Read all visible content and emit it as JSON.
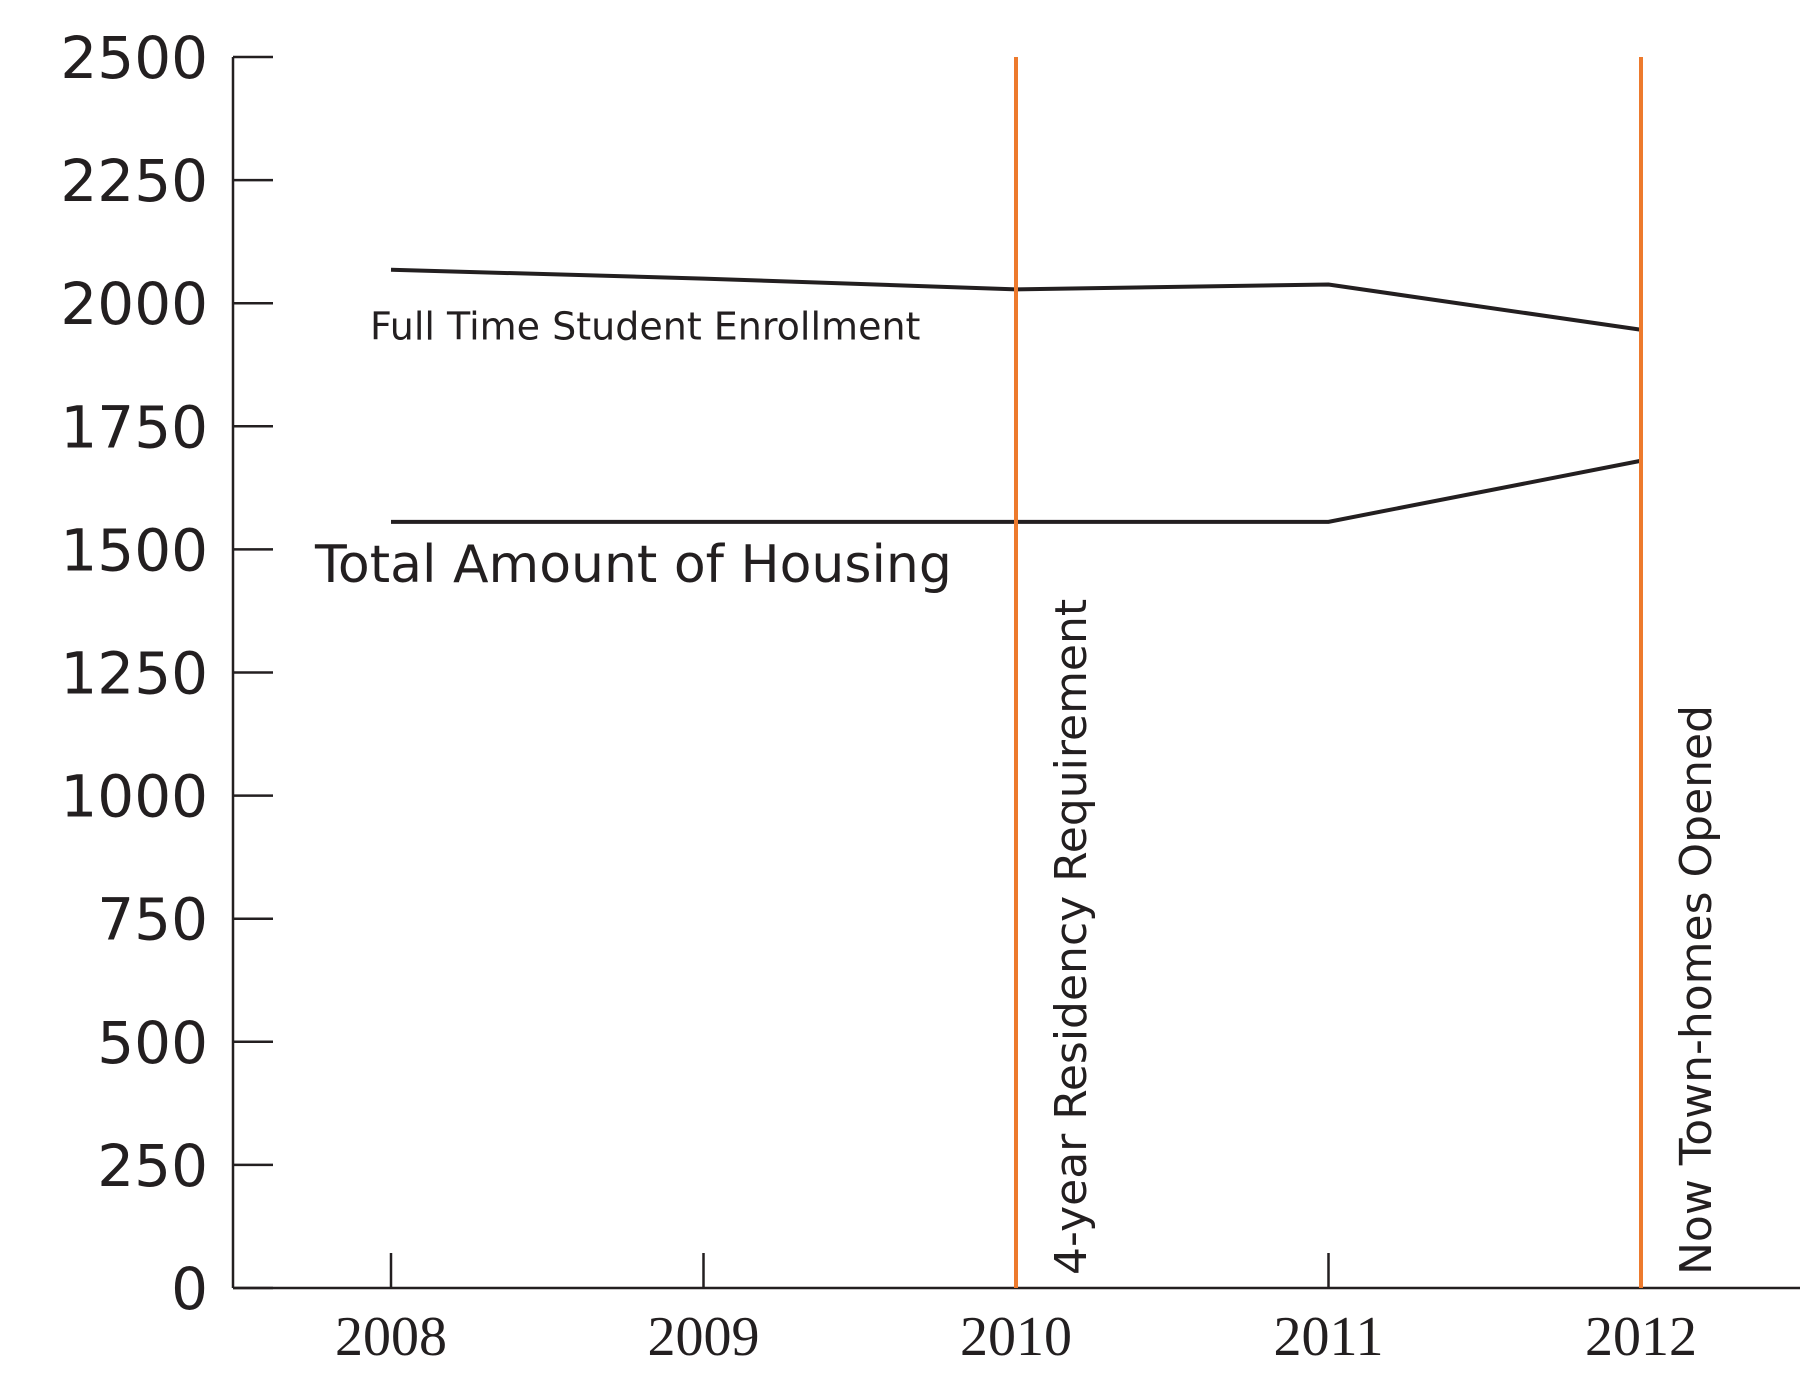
{
  "chart_data": {
    "type": "line",
    "x": [
      2008,
      2009,
      2010,
      2011,
      2012
    ],
    "xticks": [
      "2008",
      "2009",
      "2010",
      "2011",
      "2012"
    ],
    "yticks": [
      0,
      250,
      500,
      750,
      1000,
      1250,
      1500,
      1750,
      2000,
      2250,
      2500
    ],
    "ylim": [
      0,
      2500
    ],
    "series": [
      {
        "name": "Full Time Student Enrollment",
        "values": [
          2068,
          2050,
          2028,
          2038,
          1946
        ]
      },
      {
        "name": "Total Amount of Housing",
        "values": [
          1556,
          1556,
          1556,
          1556,
          1680
        ]
      }
    ],
    "annotations": [
      {
        "x": 2010,
        "label": "4-year Residency Requirement"
      },
      {
        "x": 2012,
        "label": "Now Town-homes Opened"
      }
    ],
    "colors": {
      "series": "#231f20",
      "annotation": "#ed7a2d",
      "axis": "#231f20"
    },
    "grid": false
  }
}
